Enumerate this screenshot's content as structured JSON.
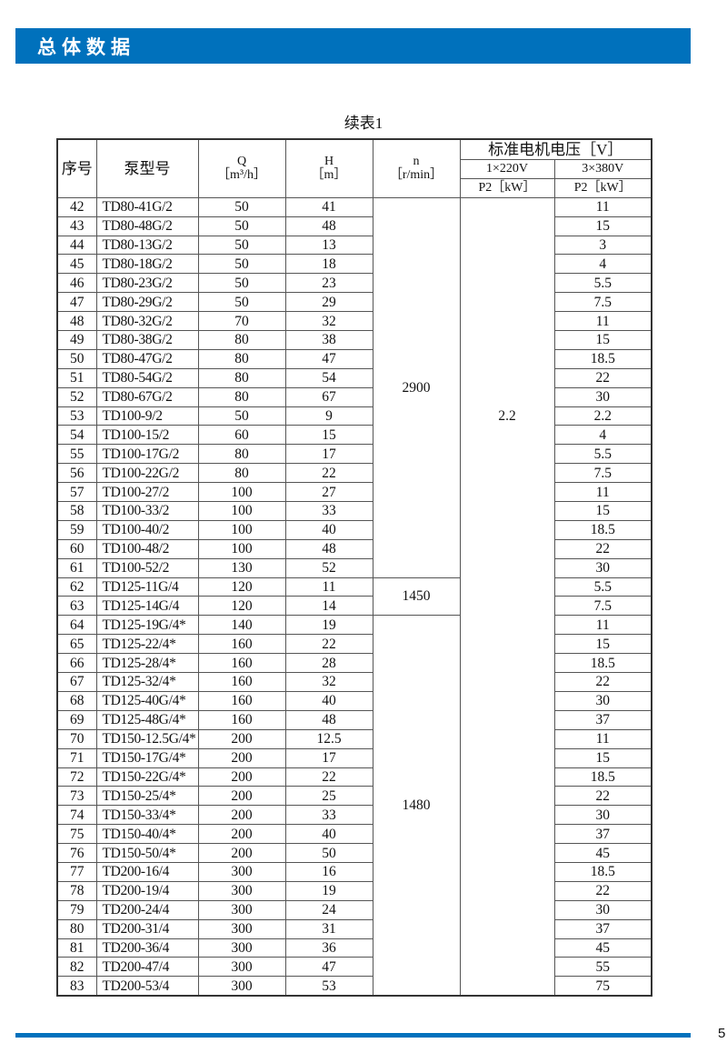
{
  "header": {
    "title": "总体数据",
    "accent_color": "#0071bc"
  },
  "caption": "续表1",
  "table": {
    "columns": {
      "no": "序号",
      "model": "泵型号",
      "q": "Q",
      "q_unit": "［m³/h］",
      "h": "H",
      "h_unit": "［m］",
      "n": "n",
      "n_unit": "［r/min］",
      "voltage": "标准电机电压［V］",
      "v1": "1×220V",
      "v3": "3×380V",
      "p2_1": "P2［kW］",
      "p2_3": "P2［kW］"
    },
    "rows": [
      [
        "42",
        "TD80-41G/2",
        "50",
        "41",
        "",
        "11"
      ],
      [
        "43",
        "TD80-48G/2",
        "50",
        "48",
        "",
        "15"
      ],
      [
        "44",
        "TD80-13G/2",
        "50",
        "13",
        "",
        "3"
      ],
      [
        "45",
        "TD80-18G/2",
        "50",
        "18",
        "",
        "4"
      ],
      [
        "46",
        "TD80-23G/2",
        "50",
        "23",
        "",
        "5.5"
      ],
      [
        "47",
        "TD80-29G/2",
        "50",
        "29",
        "",
        "7.5"
      ],
      [
        "48",
        "TD80-32G/2",
        "70",
        "32",
        "",
        "11"
      ],
      [
        "49",
        "TD80-38G/2",
        "80",
        "38",
        "",
        "15"
      ],
      [
        "50",
        "TD80-47G/2",
        "80",
        "47",
        "",
        "18.5"
      ],
      [
        "51",
        "TD80-54G/2",
        "80",
        "54",
        "",
        "22"
      ],
      [
        "52",
        "TD80-67G/2",
        "80",
        "67",
        "",
        "30"
      ],
      [
        "53",
        "TD100-9/2",
        "50",
        "9",
        "2.2",
        "2.2"
      ],
      [
        "54",
        "TD100-15/2",
        "60",
        "15",
        "",
        "4"
      ],
      [
        "55",
        "TD100-17G/2",
        "80",
        "17",
        "",
        "5.5"
      ],
      [
        "56",
        "TD100-22G/2",
        "80",
        "22",
        "",
        "7.5"
      ],
      [
        "57",
        "TD100-27/2",
        "100",
        "27",
        "",
        "11"
      ],
      [
        "58",
        "TD100-33/2",
        "100",
        "33",
        "",
        "15"
      ],
      [
        "59",
        "TD100-40/2",
        "100",
        "40",
        "",
        "18.5"
      ],
      [
        "60",
        "TD100-48/2",
        "100",
        "48",
        "",
        "22"
      ],
      [
        "61",
        "TD100-52/2",
        "130",
        "52",
        "",
        "30"
      ],
      [
        "62",
        "TD125-11G/4",
        "120",
        "11",
        "",
        "5.5"
      ],
      [
        "63",
        "TD125-14G/4",
        "120",
        "14",
        "",
        "7.5"
      ],
      [
        "64",
        "TD125-19G/4*",
        "140",
        "19",
        "",
        "11"
      ],
      [
        "65",
        "TD125-22/4*",
        "160",
        "22",
        "",
        "15"
      ],
      [
        "66",
        "TD125-28/4*",
        "160",
        "28",
        "",
        "18.5"
      ],
      [
        "67",
        "TD125-32/4*",
        "160",
        "32",
        "",
        "22"
      ],
      [
        "68",
        "TD125-40G/4*",
        "160",
        "40",
        "",
        "30"
      ],
      [
        "69",
        "TD125-48G/4*",
        "160",
        "48",
        "",
        "37"
      ],
      [
        "70",
        "TD150-12.5G/4*",
        "200",
        "12.5",
        "",
        "11"
      ],
      [
        "71",
        "TD150-17G/4*",
        "200",
        "17",
        "",
        "15"
      ],
      [
        "72",
        "TD150-22G/4*",
        "200",
        "22",
        "",
        "18.5"
      ],
      [
        "73",
        "TD150-25/4*",
        "200",
        "25",
        "",
        "22"
      ],
      [
        "74",
        "TD150-33/4*",
        "200",
        "33",
        "",
        "30"
      ],
      [
        "75",
        "TD150-40/4*",
        "200",
        "40",
        "",
        "37"
      ],
      [
        "76",
        "TD150-50/4*",
        "200",
        "50",
        "",
        "45"
      ],
      [
        "77",
        "TD200-16/4",
        "300",
        "16",
        "",
        "18.5"
      ],
      [
        "78",
        "TD200-19/4",
        "300",
        "19",
        "",
        "22"
      ],
      [
        "79",
        "TD200-24/4",
        "300",
        "24",
        "",
        "30"
      ],
      [
        "80",
        "TD200-31/4",
        "300",
        "31",
        "",
        "37"
      ],
      [
        "81",
        "TD200-36/4",
        "300",
        "36",
        "",
        "45"
      ],
      [
        "82",
        "TD200-47/4",
        "300",
        "47",
        "",
        "55"
      ],
      [
        "83",
        "TD200-53/4",
        "300",
        "53",
        "",
        "75"
      ]
    ],
    "n_groups": [
      {
        "value": "2900",
        "rows": 20
      },
      {
        "value": "1450",
        "rows": 2
      },
      {
        "value": "1480",
        "rows": 20
      }
    ]
  },
  "footer": {
    "page_number": "5"
  }
}
